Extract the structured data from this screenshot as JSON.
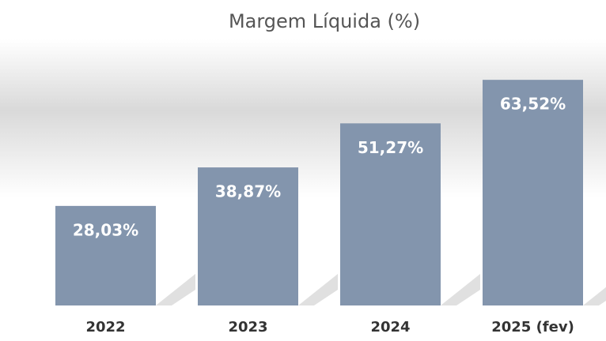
{
  "chart_data": {
    "type": "bar",
    "title": "Margem Líquida (%)",
    "categories": [
      "2022",
      "2023",
      "2024",
      "2025 (fev)"
    ],
    "values": [
      28.03,
      38.87,
      51.27,
      63.52
    ],
    "value_labels": [
      "28,03%",
      "38,87%",
      "51,27%",
      "63,52%"
    ],
    "color": "#8395ad"
  }
}
